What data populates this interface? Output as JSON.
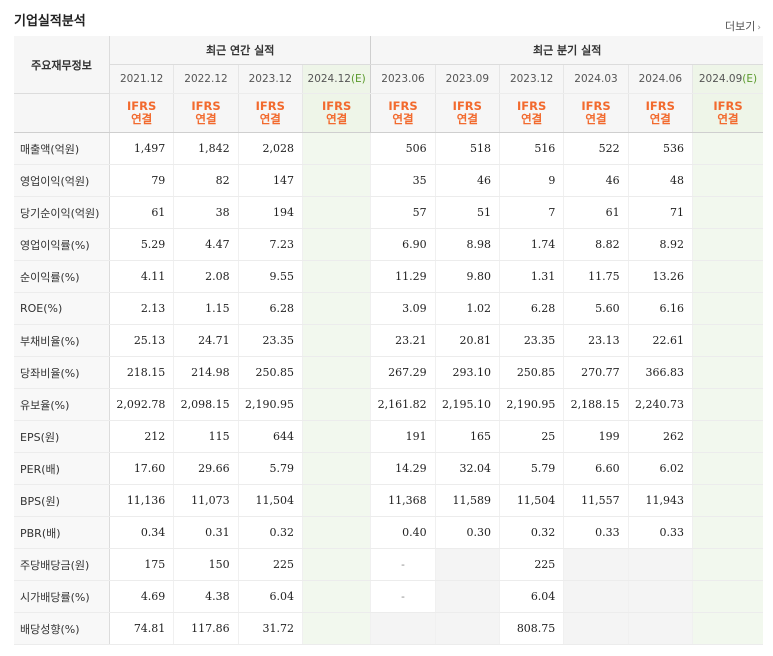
{
  "header": {
    "title": "기업실적분석",
    "more_label": "더보기",
    "more_icon": "chevron-right-icon"
  },
  "table": {
    "label_header": "주요재무정보",
    "group_annual": "최근 연간 실적",
    "group_quarter": "최근 분기 실적",
    "annual_periods": [
      {
        "label": "2021.12",
        "est": ""
      },
      {
        "label": "2022.12",
        "est": ""
      },
      {
        "label": "2023.12",
        "est": ""
      },
      {
        "label": "2024.12",
        "est": "(E)"
      }
    ],
    "quarter_periods": [
      {
        "label": "2023.06",
        "est": ""
      },
      {
        "label": "2023.09",
        "est": ""
      },
      {
        "label": "2023.12",
        "est": ""
      },
      {
        "label": "2024.03",
        "est": ""
      },
      {
        "label": "2024.06",
        "est": ""
      },
      {
        "label": "2024.09",
        "est": "(E)"
      }
    ],
    "ifrs_top": "IFRS",
    "ifrs_bottom": "연결",
    "rows": [
      {
        "label": "매출액(억원)",
        "annual": [
          "1,497",
          "1,842",
          "2,028",
          ""
        ],
        "quarter": [
          "506",
          "518",
          "516",
          "522",
          "536",
          ""
        ]
      },
      {
        "label": "영업이익(억원)",
        "annual": [
          "79",
          "82",
          "147",
          ""
        ],
        "quarter": [
          "35",
          "46",
          "9",
          "46",
          "48",
          ""
        ]
      },
      {
        "label": "당기순이익(억원)",
        "annual": [
          "61",
          "38",
          "194",
          ""
        ],
        "quarter": [
          "57",
          "51",
          "7",
          "61",
          "71",
          ""
        ]
      },
      {
        "label": "영업이익률(%)",
        "annual": [
          "5.29",
          "4.47",
          "7.23",
          ""
        ],
        "quarter": [
          "6.90",
          "8.98",
          "1.74",
          "8.82",
          "8.92",
          ""
        ]
      },
      {
        "label": "순이익률(%)",
        "annual": [
          "4.11",
          "2.08",
          "9.55",
          ""
        ],
        "quarter": [
          "11.29",
          "9.80",
          "1.31",
          "11.75",
          "13.26",
          ""
        ]
      },
      {
        "label": "ROE(%)",
        "annual": [
          "2.13",
          "1.15",
          "6.28",
          ""
        ],
        "quarter": [
          "3.09",
          "1.02",
          "6.28",
          "5.60",
          "6.16",
          ""
        ]
      },
      {
        "label": "부채비율(%)",
        "annual": [
          "25.13",
          "24.71",
          "23.35",
          ""
        ],
        "quarter": [
          "23.21",
          "20.81",
          "23.35",
          "23.13",
          "22.61",
          ""
        ]
      },
      {
        "label": "당좌비율(%)",
        "annual": [
          "218.15",
          "214.98",
          "250.85",
          ""
        ],
        "quarter": [
          "267.29",
          "293.10",
          "250.85",
          "270.77",
          "366.83",
          ""
        ]
      },
      {
        "label": "유보율(%)",
        "annual": [
          "2,092.78",
          "2,098.15",
          "2,190.95",
          ""
        ],
        "quarter": [
          "2,161.82",
          "2,195.10",
          "2,190.95",
          "2,188.15",
          "2,240.73",
          ""
        ]
      },
      {
        "label": "EPS(원)",
        "annual": [
          "212",
          "115",
          "644",
          ""
        ],
        "quarter": [
          "191",
          "165",
          "25",
          "199",
          "262",
          ""
        ]
      },
      {
        "label": "PER(배)",
        "annual": [
          "17.60",
          "29.66",
          "5.79",
          ""
        ],
        "quarter": [
          "14.29",
          "32.04",
          "5.79",
          "6.60",
          "6.02",
          ""
        ]
      },
      {
        "label": "BPS(원)",
        "annual": [
          "11,136",
          "11,073",
          "11,504",
          ""
        ],
        "quarter": [
          "11,368",
          "11,589",
          "11,504",
          "11,557",
          "11,943",
          ""
        ]
      },
      {
        "label": "PBR(배)",
        "annual": [
          "0.34",
          "0.31",
          "0.32",
          ""
        ],
        "quarter": [
          "0.40",
          "0.30",
          "0.32",
          "0.33",
          "0.33",
          ""
        ]
      },
      {
        "label": "주당배당금(원)",
        "annual": [
          "175",
          "150",
          "225",
          ""
        ],
        "quarter": [
          "-",
          "",
          "225",
          "",
          "",
          ""
        ]
      },
      {
        "label": "시가배당률(%)",
        "annual": [
          "4.69",
          "4.38",
          "6.04",
          ""
        ],
        "quarter": [
          "-",
          "",
          "6.04",
          "",
          "",
          ""
        ]
      },
      {
        "label": "배당성향(%)",
        "annual": [
          "74.81",
          "117.86",
          "31.72",
          ""
        ],
        "quarter": [
          "",
          "",
          "808.75",
          "",
          "",
          ""
        ]
      }
    ]
  }
}
